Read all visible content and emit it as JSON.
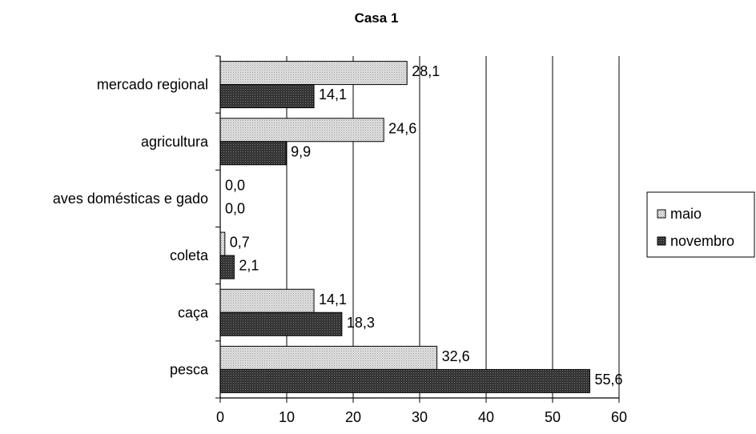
{
  "chart_data": {
    "type": "bar",
    "orientation": "horizontal",
    "title": "Casa 1",
    "xlabel": "",
    "ylabel": "",
    "categories": [
      "pesca",
      "caça",
      "coleta",
      "aves domésticas e gado",
      "agricultura",
      "mercado regional"
    ],
    "series": [
      {
        "name": "maio",
        "values": [
          32.6,
          14.1,
          0.7,
          0.0,
          24.6,
          28.1
        ],
        "labels": [
          "32,6",
          "14,1",
          "0,7",
          "0,0",
          "24,6",
          "28,1"
        ],
        "pattern": "light-hatch"
      },
      {
        "name": "novembro",
        "values": [
          55.6,
          18.3,
          2.1,
          0.0,
          9.9,
          14.1
        ],
        "labels": [
          "55,6",
          "18,3",
          "2,1",
          "0,0",
          "9,9",
          "14,1"
        ],
        "pattern": "dark-hatch"
      }
    ],
    "xlim": [
      0,
      60
    ],
    "xticks": [
      "0",
      "10",
      "20",
      "30",
      "40",
      "50",
      "60"
    ],
    "grid": true,
    "legend_position": "right"
  }
}
